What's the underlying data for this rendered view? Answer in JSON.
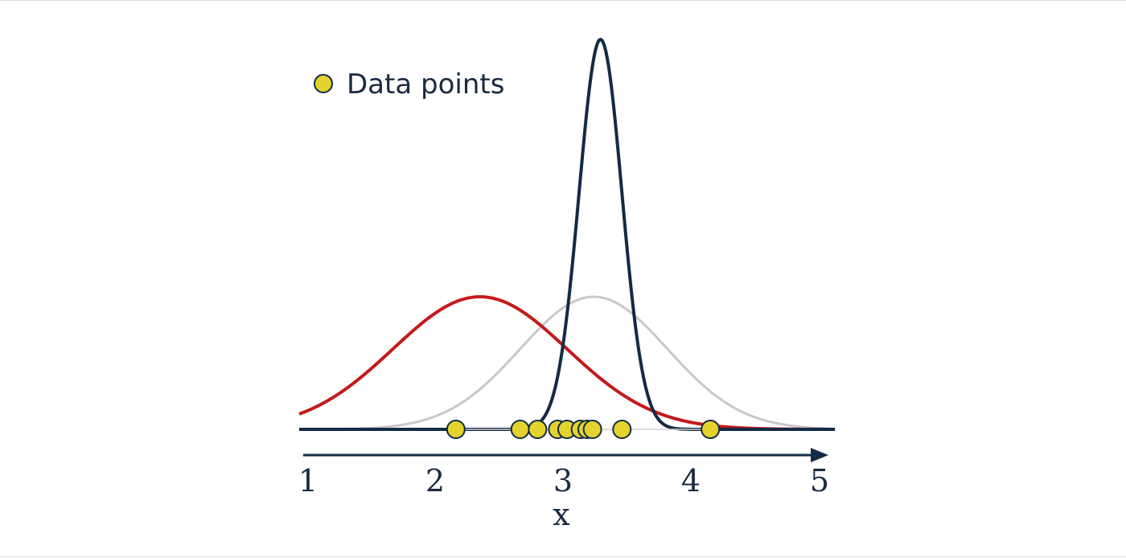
{
  "chart_data": {
    "type": "line",
    "title": "",
    "xlabel": "x",
    "ylabel": "",
    "xlim": [
      1,
      5
    ],
    "x_ticks": [
      "1",
      "2",
      "3",
      "4",
      "5"
    ],
    "grid": false,
    "legend_position": "top-left",
    "legend": [
      {
        "label": "Data points",
        "marker": "circle",
        "color": "#e3d32c"
      }
    ],
    "series": [
      {
        "kind": "density",
        "color": "#142a45",
        "mean": 3.25,
        "std": 0.16,
        "peak": 1.0
      },
      {
        "kind": "density",
        "color": "#c31a1a",
        "mean": 2.35,
        "std": 0.65,
        "peak": 0.34
      },
      {
        "kind": "density",
        "color": "#c8c8c8",
        "mean": 3.2,
        "std": 0.55,
        "peak": 0.34
      }
    ],
    "points": {
      "name": "Data points",
      "color": "#e3d32c",
      "x": [
        2.17,
        2.65,
        2.78,
        2.93,
        3.0,
        3.1,
        3.15,
        3.19,
        3.41,
        4.07
      ]
    }
  }
}
